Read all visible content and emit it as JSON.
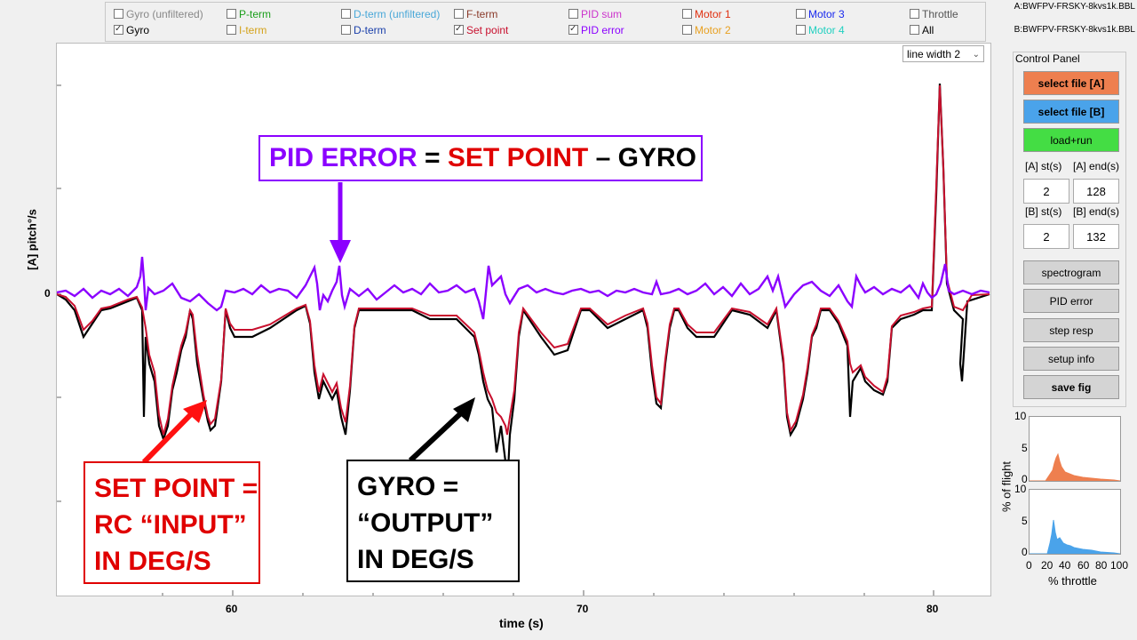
{
  "checkboxes": [
    {
      "label": "Gyro (unfiltered)",
      "checked": false,
      "color": "#888888"
    },
    {
      "label": "Gyro",
      "checked": true,
      "color": "#000000"
    },
    {
      "label": "P-term",
      "checked": false,
      "color": "#1a9e1a"
    },
    {
      "label": "I-term",
      "checked": false,
      "color": "#d4a21a"
    },
    {
      "label": "D-term (unfiltered)",
      "checked": false,
      "color": "#4aa8d8"
    },
    {
      "label": "D-term",
      "checked": false,
      "color": "#1a3faa"
    },
    {
      "label": "F-term",
      "checked": false,
      "color": "#8a3a2a"
    },
    {
      "label": "Set point",
      "checked": true,
      "color": "#c8102e"
    },
    {
      "label": "PID sum",
      "checked": false,
      "color": "#cc33cc"
    },
    {
      "label": "PID error",
      "checked": true,
      "color": "#8b00ff"
    },
    {
      "label": "Motor 1",
      "checked": false,
      "color": "#e03010"
    },
    {
      "label": "Motor 2",
      "checked": false,
      "color": "#e8a020"
    },
    {
      "label": "Motor 3",
      "checked": false,
      "color": "#1a2aee"
    },
    {
      "label": "Motor 4",
      "checked": false,
      "color": "#20d0c0"
    },
    {
      "label": "Throttle",
      "checked": false,
      "color": "#555555"
    },
    {
      "label": "All",
      "checked": false,
      "color": "#000000"
    }
  ],
  "files": {
    "a": "A:BWFPV-FRSKY-8kvs1k.BBL",
    "b": "B:BWFPV-FRSKY-8kvs1k.BBL"
  },
  "plot": {
    "ylabel": "[A] pitch°/s",
    "ytick": "0",
    "xticks": [
      "60",
      "70",
      "80"
    ],
    "xlabel": "time (s)",
    "line_width": "line width 2"
  },
  "panel": {
    "title": "Control Panel",
    "select_a": "select file [A]",
    "select_b": "select file [B]",
    "load_run": "load+run",
    "a_st_label": "[A] st(s)",
    "a_end_label": "[A] end(s)",
    "a_st": "2",
    "a_end": "128",
    "b_st_label": "[B] st(s)",
    "b_end_label": "[B] end(s)",
    "b_st": "2",
    "b_end": "132",
    "spectrogram": "spectrogram",
    "pid_error": "PID error",
    "step_resp": "step resp",
    "setup_info": "setup info",
    "save_fig": "save fig"
  },
  "annotations": {
    "pid_error": "PID ERROR",
    "eq": "=",
    "set_point": "SET POINT",
    "minus_gyro": "– GYRO",
    "sp_1": "SET POINT =",
    "sp_2": "RC “INPUT”",
    "sp_3": "IN DEG/S",
    "g_1": "GYRO =",
    "g_2": "“OUTPUT”",
    "g_3": "IN DEG/S"
  },
  "histograms": {
    "ylabel": "% of flight",
    "xlabel": "% throttle",
    "ytop": "10",
    "ymid": "5",
    "yzero": "0",
    "xticks": [
      "0",
      "20",
      "40",
      "60",
      "80",
      "100"
    ]
  },
  "colors": {
    "set_point": "#c8102e",
    "gyro": "#000000",
    "pid_error": "#8b00ff",
    "file_a": "#ee7f4f",
    "file_b": "#4aa3ea",
    "load": "#44dd44"
  }
}
